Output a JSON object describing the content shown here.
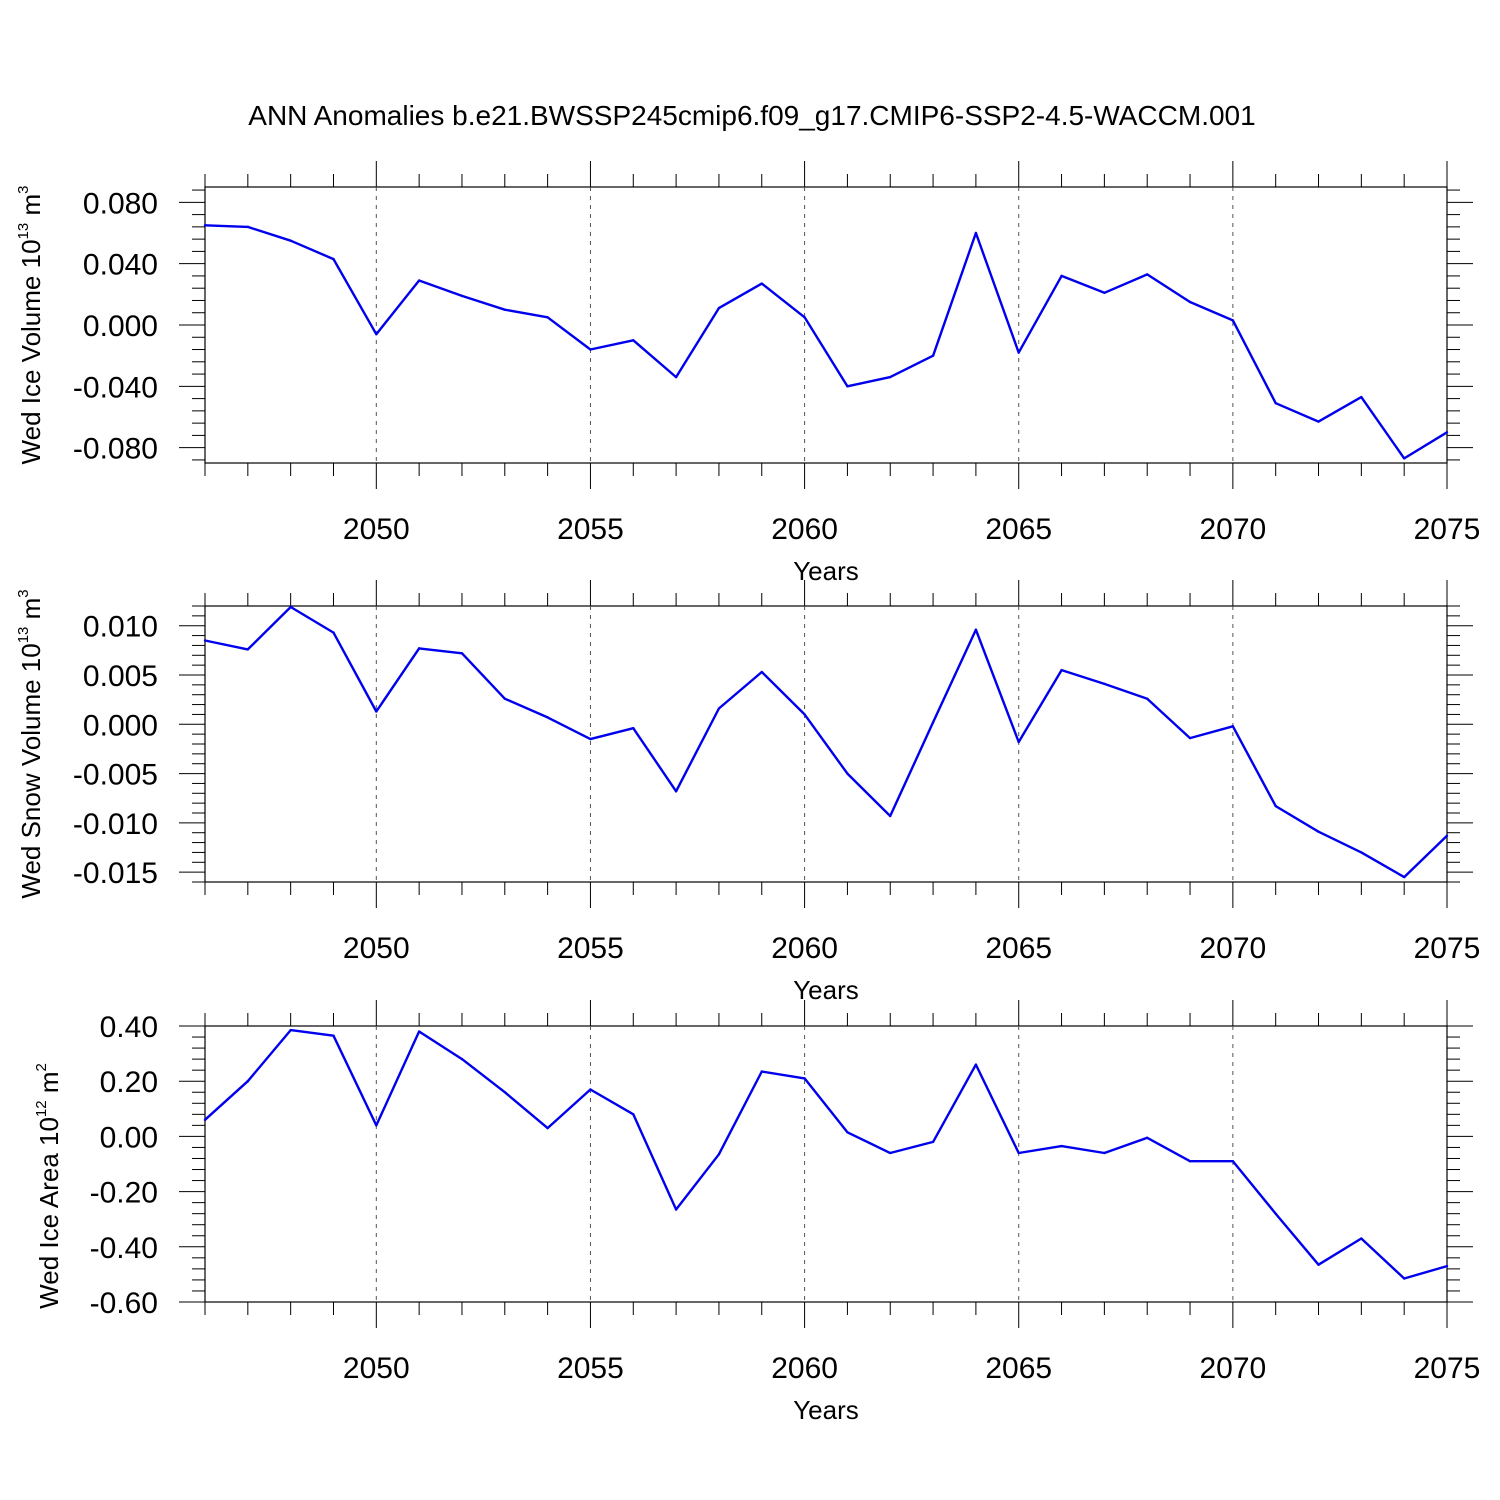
{
  "title": "ANN Anomalies b.e21.BWSSP245cmip6.f09_g17.CMIP6-SSP2-4.5-WACCM.001",
  "line_color": "#0000ee",
  "chart_data": [
    {
      "type": "line",
      "ylabel_main": "Wed Ice Volume 10",
      "ylabel_exp": "13",
      "ylabel_unit": "m",
      "ylabel_unit_exp": "3",
      "xlabel": "Years",
      "xlim": [
        2046,
        2075
      ],
      "ylim": [
        -0.09,
        0.09
      ],
      "yticks": [
        -0.08,
        -0.04,
        0.0,
        0.04,
        0.08
      ],
      "ytick_labels": [
        "-0.080",
        "-0.040",
        "0.000",
        "0.040",
        "0.080"
      ],
      "xticks": [
        2050,
        2055,
        2060,
        2065,
        2070,
        2075
      ],
      "xtick_labels": [
        "2050",
        "2055",
        "2060",
        "2065",
        "2070",
        "2075"
      ],
      "x": [
        2046,
        2047,
        2048,
        2049,
        2050,
        2051,
        2052,
        2053,
        2054,
        2055,
        2056,
        2057,
        2058,
        2059,
        2060,
        2061,
        2062,
        2063,
        2064,
        2065,
        2066,
        2067,
        2068,
        2069,
        2070,
        2071,
        2072,
        2073,
        2074,
        2075
      ],
      "values": [
        0.065,
        0.064,
        0.055,
        0.043,
        -0.006,
        0.029,
        0.019,
        0.01,
        0.005,
        -0.016,
        -0.01,
        -0.034,
        0.011,
        0.027,
        0.005,
        -0.04,
        -0.034,
        -0.02,
        0.06,
        -0.018,
        0.032,
        0.021,
        0.033,
        0.015,
        0.003,
        -0.051,
        -0.063,
        -0.047,
        -0.087,
        -0.07
      ]
    },
    {
      "type": "line",
      "ylabel_main": "Wed Snow Volume 10",
      "ylabel_exp": "13",
      "ylabel_unit": "m",
      "ylabel_unit_exp": "3",
      "xlabel": "Years",
      "xlim": [
        2046,
        2075
      ],
      "ylim": [
        -0.016,
        0.012
      ],
      "yticks": [
        -0.015,
        -0.01,
        -0.005,
        0.0,
        0.005,
        0.01
      ],
      "ytick_labels": [
        "-0.015",
        "-0.010",
        "-0.005",
        "0.000",
        "0.005",
        "0.010"
      ],
      "xticks": [
        2050,
        2055,
        2060,
        2065,
        2070,
        2075
      ],
      "xtick_labels": [
        "2050",
        "2055",
        "2060",
        "2065",
        "2070",
        "2075"
      ],
      "x": [
        2046,
        2047,
        2048,
        2049,
        2050,
        2051,
        2052,
        2053,
        2054,
        2055,
        2056,
        2057,
        2058,
        2059,
        2060,
        2061,
        2062,
        2063,
        2064,
        2065,
        2066,
        2067,
        2068,
        2069,
        2070,
        2071,
        2072,
        2073,
        2074,
        2075
      ],
      "values": [
        0.0085,
        0.0076,
        0.0119,
        0.0093,
        0.0013,
        0.0077,
        0.0072,
        0.0026,
        0.0007,
        -0.0015,
        -0.0004,
        -0.0068,
        0.0016,
        0.0053,
        0.001,
        -0.005,
        -0.0093,
        0.0002,
        0.0096,
        -0.0018,
        0.0055,
        0.0041,
        0.0026,
        -0.0014,
        -0.0002,
        -0.0083,
        -0.0109,
        -0.013,
        -0.0155,
        -0.0113
      ]
    },
    {
      "type": "line",
      "ylabel_main": "Wed Ice Area 10",
      "ylabel_exp": "12",
      "ylabel_unit": "m",
      "ylabel_unit_exp": "2",
      "xlabel": "Years",
      "xlim": [
        2046,
        2075
      ],
      "ylim": [
        -0.6,
        0.4
      ],
      "yticks": [
        -0.6,
        -0.4,
        -0.2,
        0.0,
        0.2,
        0.4
      ],
      "ytick_labels": [
        "-0.60",
        "-0.40",
        "-0.20",
        "0.00",
        "0.20",
        "0.40"
      ],
      "xticks": [
        2050,
        2055,
        2060,
        2065,
        2070,
        2075
      ],
      "xtick_labels": [
        "2050",
        "2055",
        "2060",
        "2065",
        "2070",
        "2075"
      ],
      "x": [
        2046,
        2047,
        2048,
        2049,
        2050,
        2051,
        2052,
        2053,
        2054,
        2055,
        2056,
        2057,
        2058,
        2059,
        2060,
        2061,
        2062,
        2063,
        2064,
        2065,
        2066,
        2067,
        2068,
        2069,
        2070,
        2071,
        2072,
        2073,
        2074,
        2075
      ],
      "values": [
        0.06,
        0.2,
        0.385,
        0.365,
        0.04,
        0.38,
        0.28,
        0.16,
        0.03,
        0.17,
        0.08,
        -0.265,
        -0.065,
        0.235,
        0.21,
        0.015,
        -0.06,
        -0.02,
        0.26,
        -0.06,
        -0.035,
        -0.06,
        -0.005,
        -0.09,
        -0.09,
        -0.28,
        -0.465,
        -0.37,
        -0.515,
        -0.47
      ]
    }
  ]
}
